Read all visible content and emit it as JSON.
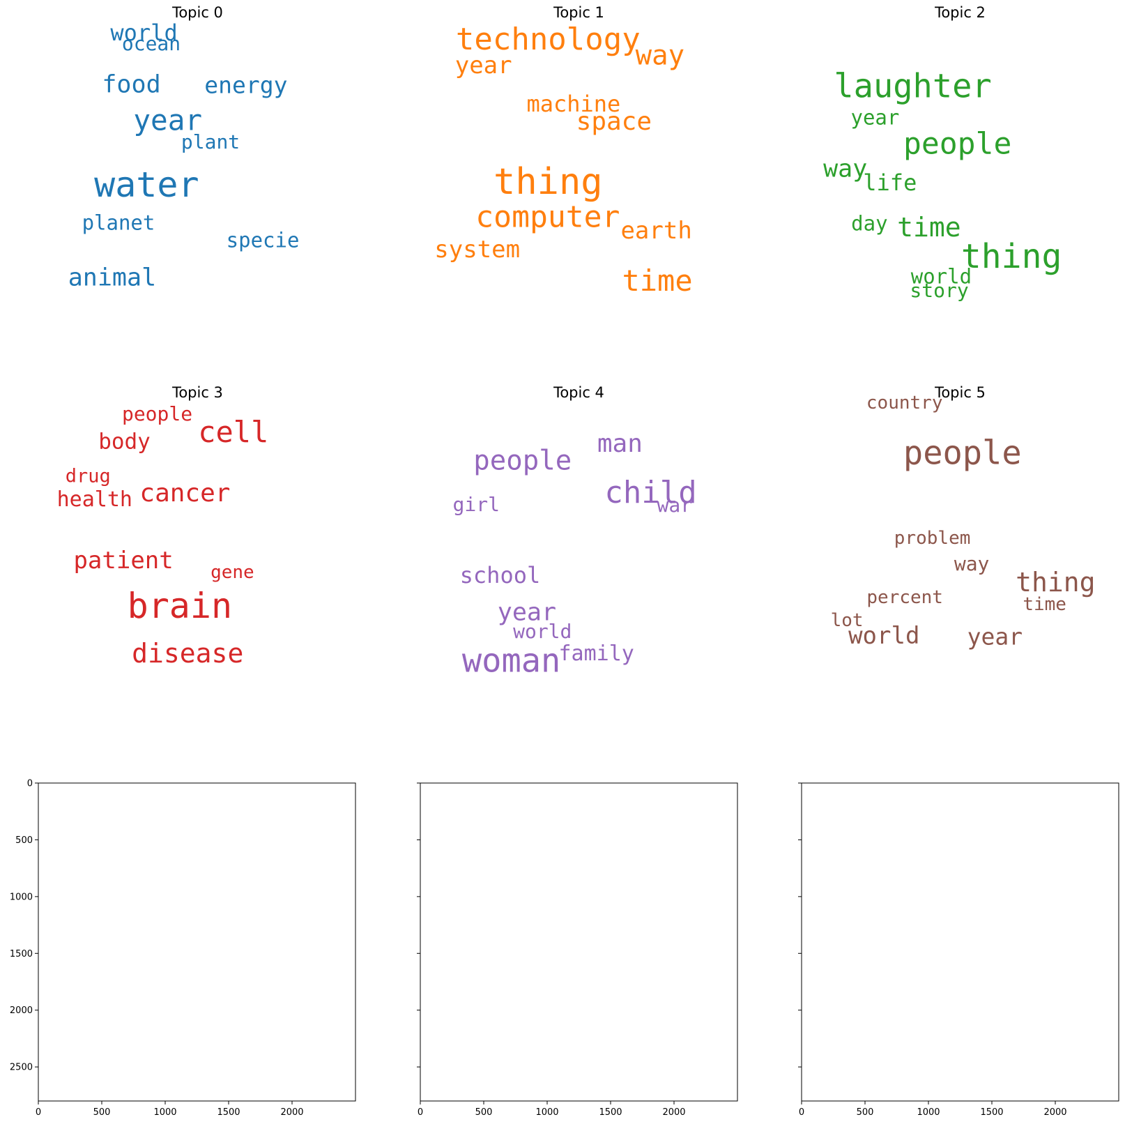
{
  "chart_data": [
    {
      "type": "wordcloud",
      "title": "Topic 0",
      "color": "#1f77b4",
      "words": [
        {
          "text": "world",
          "size": 32,
          "x": 0.338,
          "y": 0.098
        },
        {
          "text": "ocean",
          "size": 28,
          "x": 0.36,
          "y": 0.133
        },
        {
          "text": "food",
          "size": 35,
          "x": 0.3,
          "y": 0.257
        },
        {
          "text": "energy",
          "size": 33,
          "x": 0.646,
          "y": 0.257
        },
        {
          "text": "year",
          "size": 41,
          "x": 0.41,
          "y": 0.364
        },
        {
          "text": "plant",
          "size": 28,
          "x": 0.539,
          "y": 0.429
        },
        {
          "text": "water",
          "size": 50,
          "x": 0.346,
          "y": 0.557
        },
        {
          "text": "planet",
          "size": 29,
          "x": 0.261,
          "y": 0.674
        },
        {
          "text": "specie",
          "size": 29,
          "x": 0.697,
          "y": 0.727
        },
        {
          "text": "animal",
          "size": 35,
          "x": 0.242,
          "y": 0.84
        }
      ]
    },
    {
      "type": "wordcloud",
      "title": "Topic 1",
      "color": "#ff7f0e",
      "words": [
        {
          "text": "technology",
          "size": 44,
          "x": 0.407,
          "y": 0.12
        },
        {
          "text": "way",
          "size": 39,
          "x": 0.745,
          "y": 0.169
        },
        {
          "text": "year",
          "size": 34,
          "x": 0.212,
          "y": 0.198
        },
        {
          "text": "machine",
          "size": 32,
          "x": 0.484,
          "y": 0.313
        },
        {
          "text": "space",
          "size": 36,
          "x": 0.606,
          "y": 0.368
        },
        {
          "text": "thing",
          "size": 52,
          "x": 0.407,
          "y": 0.55
        },
        {
          "text": "computer",
          "size": 43,
          "x": 0.406,
          "y": 0.656
        },
        {
          "text": "earth",
          "size": 34,
          "x": 0.734,
          "y": 0.697
        },
        {
          "text": "system",
          "size": 34,
          "x": 0.193,
          "y": 0.753
        },
        {
          "text": "time",
          "size": 42,
          "x": 0.737,
          "y": 0.848
        }
      ]
    },
    {
      "type": "wordcloud",
      "title": "Topic 2",
      "color": "#2ca02c",
      "words": [
        {
          "text": "laughter",
          "size": 47,
          "x": 0.357,
          "y": 0.262
        },
        {
          "text": "year",
          "size": 29,
          "x": 0.243,
          "y": 0.355
        },
        {
          "text": "people",
          "size": 43,
          "x": 0.492,
          "y": 0.435
        },
        {
          "text": "way",
          "size": 35,
          "x": 0.153,
          "y": 0.511
        },
        {
          "text": "life",
          "size": 32,
          "x": 0.288,
          "y": 0.551
        },
        {
          "text": "day",
          "size": 29,
          "x": 0.226,
          "y": 0.676
        },
        {
          "text": "time",
          "size": 38,
          "x": 0.406,
          "y": 0.686
        },
        {
          "text": "thing",
          "size": 48,
          "x": 0.655,
          "y": 0.774
        },
        {
          "text": "world",
          "size": 29,
          "x": 0.443,
          "y": 0.836
        },
        {
          "text": "story",
          "size": 28,
          "x": 0.437,
          "y": 0.878
        }
      ]
    },
    {
      "type": "wordcloud",
      "title": "Topic 3",
      "color": "#d62728",
      "words": [
        {
          "text": "people",
          "size": 28,
          "x": 0.378,
          "y": 0.104
        },
        {
          "text": "cell",
          "size": 42,
          "x": 0.608,
          "y": 0.157
        },
        {
          "text": "body",
          "size": 31,
          "x": 0.279,
          "y": 0.187
        },
        {
          "text": "drug",
          "size": 27,
          "x": 0.169,
          "y": 0.291
        },
        {
          "text": "cancer",
          "size": 36,
          "x": 0.462,
          "y": 0.344
        },
        {
          "text": "health",
          "size": 30,
          "x": 0.189,
          "y": 0.362
        },
        {
          "text": "patient",
          "size": 34,
          "x": 0.276,
          "y": 0.545
        },
        {
          "text": "gene",
          "size": 26,
          "x": 0.605,
          "y": 0.58
        },
        {
          "text": "brain",
          "size": 50,
          "x": 0.446,
          "y": 0.683
        },
        {
          "text": "disease",
          "size": 38,
          "x": 0.47,
          "y": 0.826
        }
      ]
    },
    {
      "type": "wordcloud",
      "title": "Topic 4",
      "color": "#9467bd",
      "words": [
        {
          "text": "man",
          "size": 36,
          "x": 0.624,
          "y": 0.194
        },
        {
          "text": "people",
          "size": 39,
          "x": 0.33,
          "y": 0.244
        },
        {
          "text": "child",
          "size": 44,
          "x": 0.717,
          "y": 0.342
        },
        {
          "text": "war",
          "size": 28,
          "x": 0.789,
          "y": 0.378
        },
        {
          "text": "girl",
          "size": 28,
          "x": 0.19,
          "y": 0.376
        },
        {
          "text": "school",
          "size": 32,
          "x": 0.262,
          "y": 0.589
        },
        {
          "text": "year",
          "size": 35,
          "x": 0.343,
          "y": 0.703
        },
        {
          "text": "world",
          "size": 28,
          "x": 0.39,
          "y": 0.759
        },
        {
          "text": "family",
          "size": 30,
          "x": 0.553,
          "y": 0.827
        },
        {
          "text": "woman",
          "size": 47,
          "x": 0.296,
          "y": 0.848
        }
      ]
    },
    {
      "type": "wordcloud",
      "title": "Topic 5",
      "color": "#8c564b",
      "words": [
        {
          "text": "country",
          "size": 26,
          "x": 0.332,
          "y": 0.069
        },
        {
          "text": "people",
          "size": 47,
          "x": 0.507,
          "y": 0.222
        },
        {
          "text": "problem",
          "size": 26,
          "x": 0.416,
          "y": 0.477
        },
        {
          "text": "way",
          "size": 28,
          "x": 0.535,
          "y": 0.556
        },
        {
          "text": "thing",
          "size": 38,
          "x": 0.788,
          "y": 0.611
        },
        {
          "text": "percent",
          "size": 26,
          "x": 0.333,
          "y": 0.656
        },
        {
          "text": "time",
          "size": 26,
          "x": 0.755,
          "y": 0.677
        },
        {
          "text": "lot",
          "size": 26,
          "x": 0.158,
          "y": 0.726
        },
        {
          "text": "world",
          "size": 34,
          "x": 0.27,
          "y": 0.772
        },
        {
          "text": "year",
          "size": 33,
          "x": 0.605,
          "y": 0.774
        }
      ]
    },
    {
      "type": "image",
      "xlim": [
        0,
        2500
      ],
      "ylim": [
        2800,
        0
      ],
      "xticks": [
        "0",
        "500",
        "1000",
        "1500",
        "2000"
      ],
      "yticks": [
        "0",
        "500",
        "1000",
        "1500",
        "2000",
        "2500"
      ],
      "show_ytick_labels": true
    },
    {
      "type": "image",
      "xlim": [
        0,
        2500
      ],
      "ylim": [
        2800,
        0
      ],
      "xticks": [
        "0",
        "500",
        "1000",
        "1500",
        "2000"
      ],
      "yticks": [
        "0",
        "500",
        "1000",
        "1500",
        "2000",
        "2500"
      ],
      "show_ytick_labels": false
    },
    {
      "type": "image",
      "xlim": [
        0,
        2500
      ],
      "ylim": [
        2800,
        0
      ],
      "xticks": [
        "0",
        "500",
        "1000",
        "1500",
        "2000"
      ],
      "yticks": [
        "0",
        "500",
        "1000",
        "1500",
        "2000",
        "2500"
      ],
      "show_ytick_labels": false
    }
  ]
}
